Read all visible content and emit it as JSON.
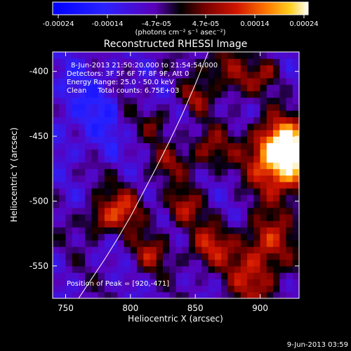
{
  "colorbar": {
    "ticks": [
      "-0.00024",
      "-0.00014",
      "-4.7e-05",
      "4.7e-05",
      "0.00014",
      "0.00024"
    ],
    "range": [
      -0.00024,
      0.00024
    ],
    "unit_label": "(photons cm⁻² s⁻¹ asec⁻²)"
  },
  "chart_data": {
    "type": "heatmap",
    "title": "Reconstructed RHESSI Image",
    "xlabel": "Heliocentric X (arcsec)",
    "ylabel": "Heliocentric Y (arcsec)",
    "xlim": [
      740,
      930
    ],
    "ylim": [
      -575,
      -385
    ],
    "x_ticks": [
      750,
      800,
      850,
      900
    ],
    "y_ticks": [
      -400,
      -450,
      -500,
      -550
    ],
    "value_range": [
      -0.00024,
      0.00024
    ],
    "peak": [
      920,
      -471
    ],
    "limb_curve": {
      "x": [
        760,
        770,
        780,
        790,
        800,
        810,
        820,
        830,
        840,
        850,
        860
      ],
      "y": [
        -575,
        -560,
        -545,
        -529,
        -512,
        -493,
        -474,
        -454,
        -433,
        -410,
        -385
      ]
    },
    "annotations": [
      "8-Jun-2013 21:50:20.000 to 21:54:54.000",
      "Detectors: 3F 5F 6F 7F 8F 9F, Att 0",
      "Energy Range: 25.0 - 50.0 keV",
      "Clean     Total counts: 6.75E+03",
      "Position of Peak = [920,-471]"
    ],
    "timestamp": "9-Jun-2013 03:59"
  }
}
